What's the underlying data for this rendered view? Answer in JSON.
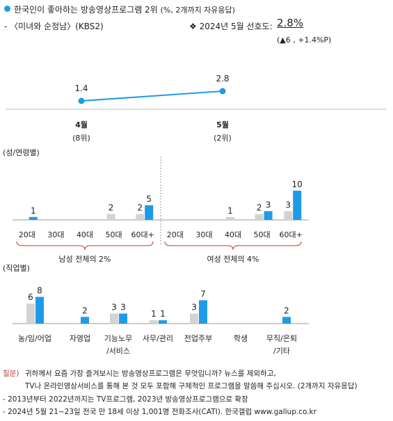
{
  "header": {
    "title": "한국인이 좋아하는 방송영상프로그램 2위",
    "title_unit": "(%, 2개까지 자유응답)",
    "subtitle": "- 〈미녀와 순정남〉(KBS2)",
    "pref_label": "❖  2024년 5월 선호도:",
    "pref_value": "2.8%",
    "pref_change": "(▲6 , +1.4%P)"
  },
  "colors": {
    "primary": "#1e9be8",
    "secondary": "#d3d3d3",
    "line": "#1e9be8"
  },
  "chart_data": [
    {
      "type": "line",
      "x": [
        "4월",
        "5월"
      ],
      "x_sub": [
        "(8위)",
        "(2위)"
      ],
      "values": [
        1.4,
        2.8
      ],
      "value_labels": [
        "1.4",
        "2.8"
      ]
    },
    {
      "type": "bar",
      "title": "(성/연령별)",
      "groups": [
        {
          "label": "남성 전체의 2%",
          "categories": [
            "20대",
            "30대",
            "40대",
            "50대",
            "60대+"
          ],
          "series": [
            {
              "values": [
                0,
                0,
                0,
                2,
                2
              ],
              "labels": [
                "",
                "",
                "",
                "2",
                "2"
              ]
            },
            {
              "values": [
                1,
                0,
                0,
                0,
                5
              ],
              "labels": [
                "1",
                "",
                "",
                "",
                "5"
              ]
            }
          ]
        },
        {
          "label": "여성 전체의 4%",
          "categories": [
            "20대",
            "30대",
            "40대",
            "50대",
            "60대+"
          ],
          "series": [
            {
              "values": [
                0,
                0,
                1,
                2,
                3
              ],
              "labels": [
                "",
                "",
                "1",
                "2",
                "3"
              ]
            },
            {
              "values": [
                0,
                0,
                0,
                3,
                10
              ],
              "labels": [
                "",
                "",
                "",
                "3",
                "10"
              ]
            }
          ]
        }
      ]
    },
    {
      "type": "bar",
      "title": "(직업별)",
      "categories": [
        "농/임/어업",
        "자영업",
        "기능노무\n/서비스",
        "사무/관리",
        "전업주부",
        "학생",
        "무직/은퇴\n/기타"
      ],
      "series": [
        {
          "values": [
            6,
            0,
            3,
            1,
            3,
            0,
            0
          ],
          "labels": [
            "6",
            "",
            "3",
            "1",
            "3",
            "",
            ""
          ]
        },
        {
          "values": [
            8,
            2,
            3,
            1,
            7,
            0,
            2
          ],
          "labels": [
            "8",
            "2",
            "3",
            "1",
            "7",
            "",
            "2"
          ]
        }
      ]
    }
  ],
  "footer": {
    "q_label": "질문)",
    "q_line1": "귀하께서 요즘 가장 즐겨보시는 방송영상프로그램은 무엇입니까? 뉴스를 제외하고,",
    "q_line2": "TV나 온라인영상서비스를 통해 본 것 모두 포함해 구체적인 프로그램을 말씀해 주십시오. (2개까지 자유응답)",
    "note1": "- 2013년부터 2022년까지는 TV프로그램, 2023년 방송영상프로그램으로 확장",
    "note2": "- 2024년 5월 21~23일 전국 만 18세 이상 1,001명 전화조사(CATI). 한국갤럽 www.gallup.co.kr"
  }
}
